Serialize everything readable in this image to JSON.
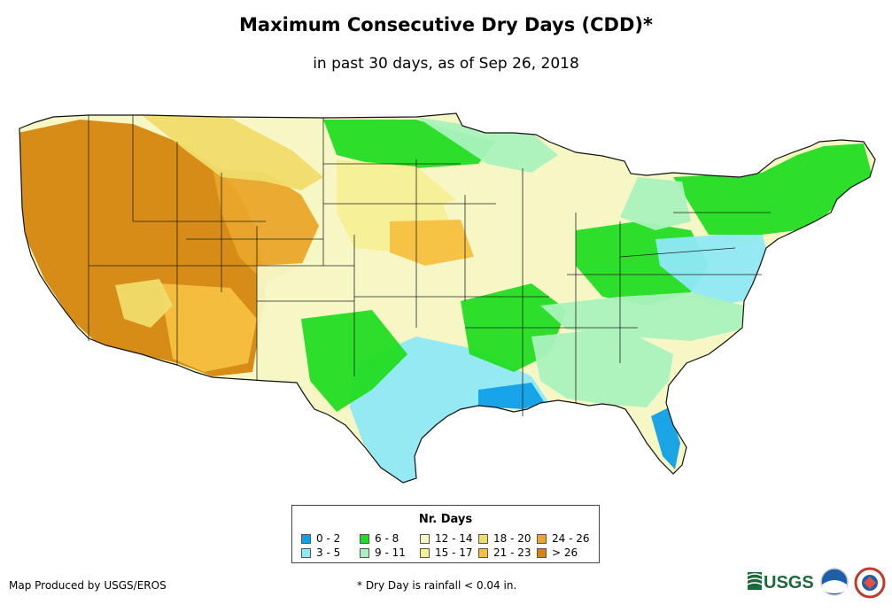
{
  "title": "Maximum Consecutive Dry Days (CDD)*",
  "subtitle": "in past 30 days, as of Sep 26, 2018",
  "legend": {
    "title": "Nr. Days",
    "items": [
      {
        "label": "0 - 2",
        "color": "#10a0e8"
      },
      {
        "label": "3 - 5",
        "color": "#8ee8f6"
      },
      {
        "label": "6 - 8",
        "color": "#22dd22"
      },
      {
        "label": "9 - 11",
        "color": "#aaf2bd"
      },
      {
        "label": "12 - 14",
        "color": "#f7f7c6"
      },
      {
        "label": "15 - 17",
        "color": "#f5ef96"
      },
      {
        "label": "18 - 20",
        "color": "#f0dc6a"
      },
      {
        "label": "21 - 23",
        "color": "#f5c040"
      },
      {
        "label": "24 - 26",
        "color": "#eaa62a"
      },
      {
        "label": "> 26",
        "color": "#d4860e"
      }
    ]
  },
  "credit": "Map Produced by USGS/EROS",
  "footnote": "* Dry Day is rainfall < 0.04 in.",
  "logos": {
    "usgs": "USGS",
    "noaa": "noaa",
    "nws": "nws-seal"
  }
}
